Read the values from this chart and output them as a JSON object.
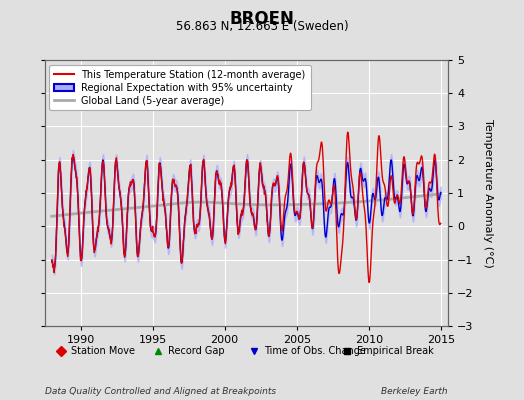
{
  "title": "BROEN",
  "subtitle": "56.863 N, 12.663 E (Sweden)",
  "ylabel": "Temperature Anomaly (°C)",
  "footer_left": "Data Quality Controlled and Aligned at Breakpoints",
  "footer_right": "Berkeley Earth",
  "xlim": [
    1987.5,
    2015.5
  ],
  "ylim": [
    -3,
    5
  ],
  "yticks": [
    -3,
    -2,
    -1,
    0,
    1,
    2,
    3,
    4,
    5
  ],
  "xticks": [
    1990,
    1995,
    2000,
    2005,
    2010,
    2015
  ],
  "background_color": "#e0e0e0",
  "plot_background": "#e0e0e0",
  "grid_color": "#ffffff",
  "red_line_color": "#dd0000",
  "blue_line_color": "#0000cc",
  "blue_fill_color": "#aaaaff",
  "gray_line_color": "#aaaaaa",
  "legend_box_color": "#ffffff",
  "marker_legend": [
    {
      "marker": "D",
      "color": "#dd0000",
      "label": "Station Move"
    },
    {
      "marker": "^",
      "color": "#008800",
      "label": "Record Gap"
    },
    {
      "marker": "v",
      "color": "#0000cc",
      "label": "Time of Obs. Change"
    },
    {
      "marker": "s",
      "color": "#000000",
      "label": "Empirical Break"
    }
  ]
}
